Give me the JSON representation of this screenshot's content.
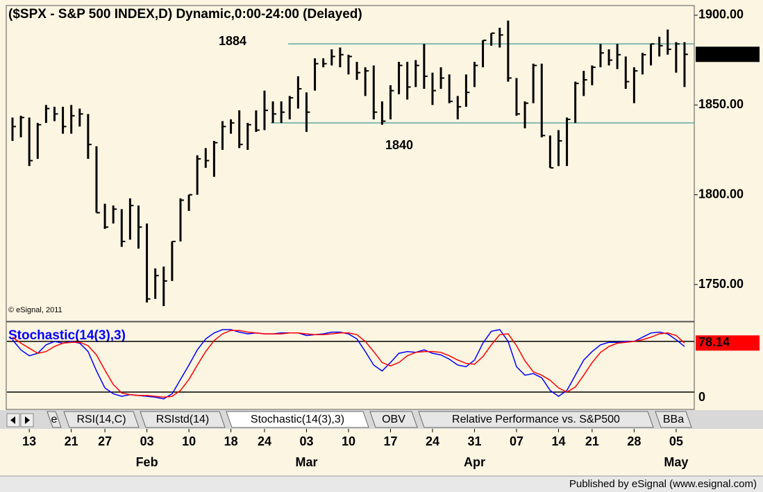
{
  "chart_data": [
    {
      "type": "hlc",
      "title": "($SPX - S&P 500 INDEX,D) Dynamic,0:00-24:00 (Delayed)",
      "watermark": "© eSignal, 2011",
      "color": "#000000",
      "ylim": [
        1730.7,
        1904.6
      ],
      "xlim": [
        -0.66,
        81.16
      ],
      "yticks": [
        {
          "value": 1900,
          "label": "1900.00"
        },
        {
          "value": 1850,
          "label": "1850.00"
        },
        {
          "value": 1800,
          "label": "1800.00"
        },
        {
          "value": 1750,
          "label": "1750.00"
        }
      ],
      "xticks": [
        {
          "value": 2,
          "label": "13"
        },
        {
          "value": 7,
          "label": "21"
        },
        {
          "value": 11,
          "label": "27"
        },
        {
          "value": 16,
          "label": "03"
        },
        {
          "value": 21,
          "label": "10"
        },
        {
          "value": 26,
          "label": "18"
        },
        {
          "value": 30,
          "label": "24"
        },
        {
          "value": 35,
          "label": "03"
        },
        {
          "value": 40,
          "label": "10"
        },
        {
          "value": 45,
          "label": "17"
        },
        {
          "value": 50,
          "label": "24"
        },
        {
          "value": 55,
          "label": "31"
        },
        {
          "value": 60,
          "label": "07"
        },
        {
          "value": 65,
          "label": "14"
        },
        {
          "value": 69,
          "label": "21"
        },
        {
          "value": 74,
          "label": "28"
        },
        {
          "value": 79,
          "label": "05"
        }
      ],
      "month_ticks": [
        {
          "value": 16,
          "label": "Feb"
        },
        {
          "value": 35,
          "label": "Mar"
        },
        {
          "value": 55,
          "label": "Apr"
        },
        {
          "value": 79,
          "label": "May"
        }
      ],
      "hlines": [
        {
          "value": 1884,
          "color": "#5fa8a0"
        },
        {
          "value": 1840,
          "color": "#5fa8a0"
        }
      ],
      "high": [
        1843,
        1844,
        1843,
        1840,
        1850,
        1849,
        1849,
        1850,
        1848,
        1845,
        1827,
        1795,
        1794,
        1792,
        1798,
        1794,
        1784,
        1759,
        1760,
        1774,
        1798,
        1800,
        1822,
        1826,
        1830,
        1841,
        1842,
        1847,
        1840,
        1847,
        1858,
        1852,
        1852,
        1855,
        1866,
        1857,
        1876,
        1876,
        1881,
        1882,
        1878,
        1874,
        1871,
        1872,
        1852,
        1861,
        1874,
        1874,
        1875,
        1884,
        1868,
        1871,
        1867,
        1855,
        1867,
        1874,
        1886,
        1890,
        1893,
        1897,
        1865,
        1852,
        1873,
        1873,
        1833,
        1836,
        1843,
        1863,
        1869,
        1872,
        1884,
        1881,
        1884,
        1877,
        1871,
        1879,
        1884,
        1888,
        1892,
        1885,
        1885
      ],
      "low": [
        1830,
        1832,
        1816,
        1820,
        1840,
        1841,
        1834,
        1834,
        1838,
        1820,
        1790,
        1781,
        1784,
        1771,
        1775,
        1770,
        1740,
        1742,
        1738,
        1752,
        1774,
        1791,
        1800,
        1815,
        1810,
        1825,
        1834,
        1826,
        1825,
        1835,
        1836,
        1840,
        1840,
        1842,
        1848,
        1835,
        1858,
        1871,
        1872,
        1871,
        1867,
        1864,
        1855,
        1842,
        1839,
        1842,
        1856,
        1853,
        1860,
        1859,
        1850,
        1859,
        1851,
        1842,
        1849,
        1860,
        1871,
        1883,
        1882,
        1863,
        1844,
        1837,
        1851,
        1832,
        1815,
        1816,
        1816,
        1840,
        1855,
        1861,
        1871,
        1872,
        1870,
        1859,
        1851,
        1867,
        1872,
        1877,
        1878,
        1868,
        1860
      ],
      "close": [
        1838,
        1843,
        1819,
        1839,
        1848,
        1845,
        1838,
        1844,
        1845,
        1828,
        1790,
        1782,
        1792,
        1774,
        1794,
        1782,
        1742,
        1755,
        1752,
        1774,
        1797,
        1800,
        1820,
        1819,
        1829,
        1838,
        1840,
        1828,
        1839,
        1836,
        1847,
        1845,
        1846,
        1854,
        1859,
        1846,
        1873,
        1873,
        1877,
        1878,
        1877,
        1868,
        1869,
        1846,
        1841,
        1858,
        1872,
        1860,
        1872,
        1866,
        1858,
        1865,
        1852,
        1849,
        1857,
        1872,
        1886,
        1890,
        1889,
        1865,
        1845,
        1851,
        1872,
        1833,
        1815,
        1830,
        1842,
        1862,
        1864,
        1871,
        1879,
        1875,
        1878,
        1863,
        1869,
        1878,
        1884,
        1883,
        1881,
        1884,
        1878.21
      ]
    },
    {
      "type": "line",
      "title": "Stochastic(14(3),3)",
      "ylim": [
        -0.5,
        102.2
      ],
      "xlim": [
        -0.66,
        81.16
      ],
      "yticks": [
        0
      ],
      "levels": [
        80,
        20
      ],
      "series": [
        {
          "color": "#0000ff",
          "values": [
            82,
            70,
            63,
            66,
            76,
            80,
            78,
            80,
            78,
            68,
            45,
            25,
            18,
            15,
            17,
            16,
            15,
            14,
            12,
            18,
            35,
            52,
            70,
            83,
            90,
            94,
            94,
            91,
            89,
            90,
            89,
            89,
            90,
            90,
            90,
            87,
            88,
            89,
            91,
            91,
            89,
            83,
            68,
            52,
            45,
            55,
            66,
            68,
            67,
            70,
            66,
            64,
            59,
            52,
            50,
            58,
            78,
            92,
            94,
            80,
            50,
            40,
            42,
            37,
            22,
            15,
            22,
            40,
            58,
            68,
            76,
            79,
            79,
            80,
            80,
            85,
            90,
            91,
            89,
            82,
            74
          ]
        },
        {
          "color": "#ff0000",
          "values": [
            85,
            78,
            72,
            66,
            68,
            74,
            78,
            79,
            79,
            75,
            64,
            46,
            29,
            19,
            17,
            16,
            16,
            15,
            14,
            15,
            22,
            35,
            52,
            68,
            81,
            89,
            93,
            93,
            91,
            90,
            89,
            89,
            89,
            90,
            90,
            89,
            88,
            88,
            89,
            90,
            90,
            88,
            80,
            68,
            55,
            51,
            55,
            63,
            67,
            68,
            68,
            67,
            63,
            58,
            54,
            53,
            62,
            76,
            88,
            89,
            75,
            57,
            44,
            40,
            34,
            25,
            20,
            26,
            40,
            55,
            67,
            74,
            78,
            79,
            80,
            82,
            85,
            89,
            90,
            87,
            78.14
          ]
        }
      ]
    }
  ],
  "tabs": [
    "e",
    "RSI(14,C)",
    "RSIstd(14)",
    "Stochastic(14(3),3)",
    "OBV",
    "Relative Performance vs. S&P500",
    "BBa"
  ],
  "footer": "Published by eSignal (www.esignal.com)"
}
